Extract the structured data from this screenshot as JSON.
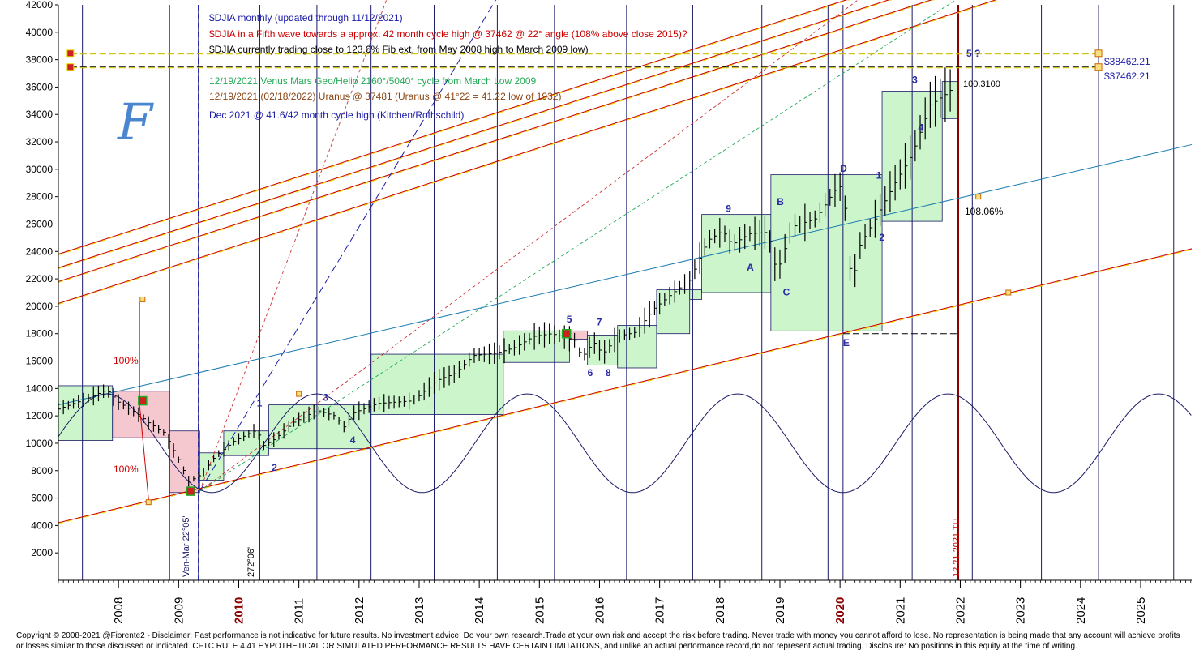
{
  "chart_data": {
    "type": "line",
    "title": "",
    "xlabel": "",
    "ylabel": "",
    "ylim": [
      0,
      42000
    ],
    "y_ticks": [
      2000,
      4000,
      6000,
      8000,
      10000,
      12000,
      14000,
      16000,
      18000,
      20000,
      22000,
      24000,
      26000,
      28000,
      30000,
      32000,
      34000,
      36000,
      38000,
      40000,
      42000
    ],
    "x_range": [
      2007.0,
      2025.85
    ],
    "x_ticks": [
      "2008",
      "2009",
      "2010",
      "2011",
      "2012",
      "2013",
      "2014",
      "2015",
      "2016",
      "2017",
      "2018",
      "2019",
      "2020",
      "2021",
      "2022",
      "2023",
      "2024",
      "2025"
    ],
    "highlight_years": [
      "2010",
      "2020"
    ],
    "grid": false,
    "series": [
      {
        "name": "",
        "x": [
          2007.0,
          2007.5,
          2007.8,
          2008.0,
          2008.3,
          2008.5,
          2008.75,
          2009.0,
          2009.17,
          2009.4,
          2009.6,
          2009.9,
          2010.3,
          2010.4,
          2010.6,
          2010.9,
          2011.3,
          2011.6,
          2011.75,
          2011.9,
          2012.3,
          2012.6,
          2012.9,
          2013.3,
          2013.6,
          2013.9,
          2014.3,
          2014.6,
          2014.9,
          2015.2,
          2015.45,
          2015.6,
          2015.7,
          2015.9,
          2016.05,
          2016.3,
          2016.6,
          2016.9,
          2017.2,
          2017.5,
          2017.8,
          2018.05,
          2018.2,
          2018.5,
          2018.8,
          2018.95,
          2019.2,
          2019.6,
          2019.9,
          2020.05,
          2020.2,
          2020.3,
          2020.6,
          2020.9,
          2021.2,
          2021.5,
          2021.8,
          2021.95
        ],
        "y": [
          12500,
          13300,
          13900,
          13000,
          12200,
          11500,
          10800,
          8800,
          7200,
          7800,
          9000,
          10100,
          11000,
          9800,
          10300,
          11500,
          12400,
          12000,
          11200,
          12200,
          12900,
          13000,
          13100,
          14600,
          15100,
          16400,
          16600,
          17000,
          17800,
          18000,
          17700,
          17500,
          16200,
          17400,
          16500,
          17800,
          18100,
          19800,
          20900,
          21900,
          24800,
          25500,
          24500,
          25300,
          25400,
          22400,
          25800,
          26400,
          28400,
          28900,
          21000,
          24200,
          26500,
          28900,
          31100,
          34700,
          35600,
          36300
        ]
      }
    ],
    "horizontal_levels": [
      {
        "label": "$38462.21",
        "value": 38462.21
      },
      {
        "label": "$37462.21",
        "value": 37462.21
      }
    ],
    "annotations": {
      "header_1": "$DJIA monthly (updated through 11/12/2021)",
      "header_2": "$DJIA in a Fifth wave towards a approx. 42 month cycle high @ 37462 @ 22° angle (108% above close 2015)?",
      "header_3": "$DJIA currently trading close to 123.6% Fib ext. from May 2008 high to March 2009 low)",
      "header_4": "12/19/2021 Venus Mars Geo/Helio 2160°/5040° cycle from March Low 2009",
      "header_5": "12/19/2021 (02/18/2022) Uranus @ 37481 (Uranus @ 41°22 = 41.22 low of 1932)",
      "header_6": "Dec 2021 @ 41.6/42 month cycle high (Kitchen/Rothschild)",
      "pct_up": "100%",
      "pct_down": "100%",
      "pct_108": "108.06%",
      "val_100": "100.3100",
      "vert_2009": "Ven-Mar  22°05'",
      "vert_2010": "272°06'",
      "vert_2021": "12.21.2021 TU",
      "logo": "F",
      "w5q": "5 ?"
    },
    "wave_labels": [
      {
        "t": "1",
        "x": 2010.3,
        "y": 12700
      },
      {
        "t": "2",
        "x": 2010.55,
        "y": 8000
      },
      {
        "t": "3",
        "x": 2011.4,
        "y": 13100
      },
      {
        "t": "4",
        "x": 2011.85,
        "y": 10000
      },
      {
        "t": "5",
        "x": 2015.45,
        "y": 18800
      },
      {
        "t": "6",
        "x": 2015.8,
        "y": 14900
      },
      {
        "t": "7",
        "x": 2015.95,
        "y": 18600
      },
      {
        "t": "8",
        "x": 2016.1,
        "y": 14900
      },
      {
        "t": "9",
        "x": 2018.1,
        "y": 26900
      },
      {
        "t": "A",
        "x": 2018.45,
        "y": 22600
      },
      {
        "t": "B",
        "x": 2018.95,
        "y": 27400
      },
      {
        "t": "C",
        "x": 2019.05,
        "y": 20800
      },
      {
        "t": "D",
        "x": 2020.0,
        "y": 29800
      },
      {
        "t": "E",
        "x": 2020.05,
        "y": 17100
      },
      {
        "t": "1",
        "x": 2020.6,
        "y": 29300
      },
      {
        "t": "2",
        "x": 2020.65,
        "y": 24800
      },
      {
        "t": "3",
        "x": 2021.2,
        "y": 36300
      },
      {
        "t": "4",
        "x": 2021.3,
        "y": 32800
      }
    ]
  },
  "footer": {
    "disclaimer": "Copyright © 2008-2021 @Fiorente2 -  Disclaimer: Past performance is not indicative for future results. No investment advice. Do your own research.Trade at your own risk and accept the risk before trading. Never trade with money you cannot afford to lose. No representation is being made that any account will achieve profits or losses similar to those discussed or indicated. CFTC RULE 4.41 HYPOTHETICAL OR SIMULATED PERFORMANCE RESULTS HAVE CERTAIN LIMITATIONS, and unlike an actual performance record,do not represent actual trading. Disclosure: No positions in this equity at the time of writing."
  },
  "colors": {
    "box_green": "#ccf5cc",
    "box_pink": "#f5c8d0",
    "price": "#000000",
    "cycle_wave": "#1a1a66",
    "red_line": "#cc0000",
    "yellow_line": "#e8d800",
    "blue_line": "#1a1aa8",
    "header_blue": "#1a1aa8",
    "header_red": "#cc0000",
    "header_green": "#22aa55",
    "header_brown": "#8b4513"
  }
}
